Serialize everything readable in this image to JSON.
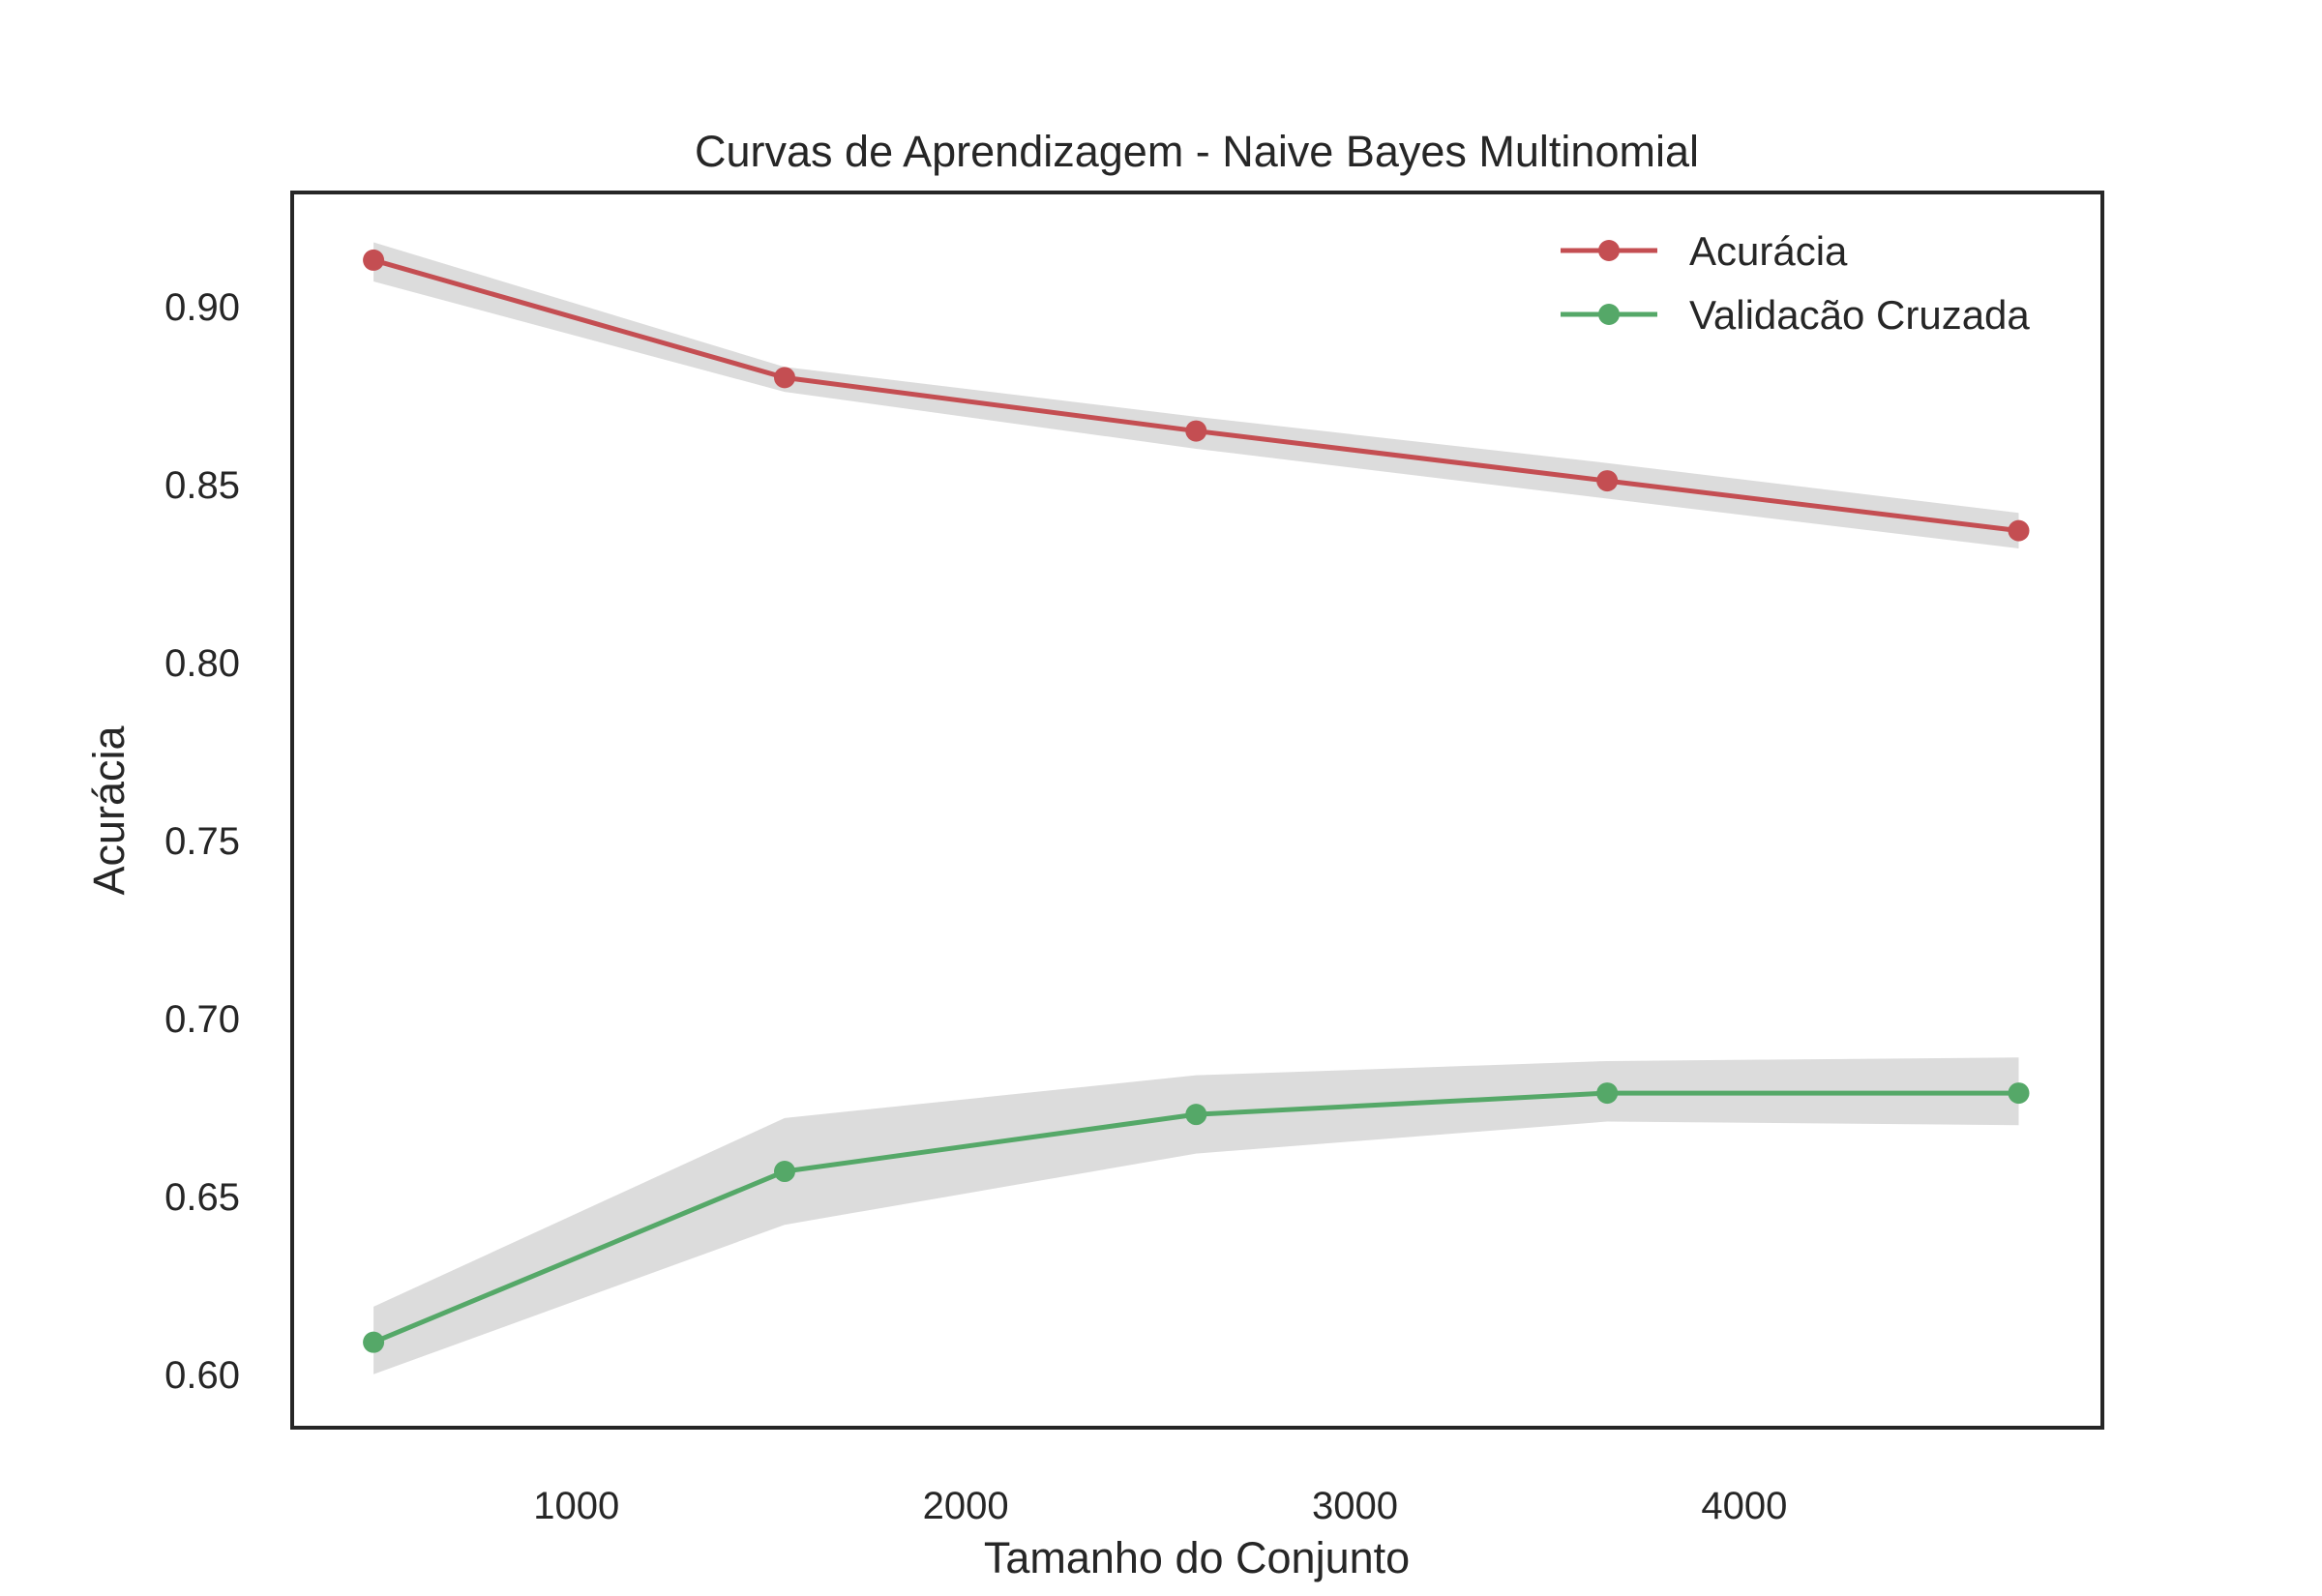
{
  "chart_data": {
    "type": "line",
    "title": "Curvas de Aprendizagem - Naive Bayes Multinomial",
    "xlabel": "Tamanho do Conjunto",
    "ylabel": "Acurácia",
    "x": [
      479,
      1535,
      2592,
      3648,
      4705
    ],
    "xlim": [
      270,
      4920
    ],
    "ylim": [
      0.585,
      0.932
    ],
    "xticks": [
      1000,
      2000,
      3000,
      4000
    ],
    "xtick_labels": [
      "1000",
      "2000",
      "3000",
      "4000"
    ],
    "yticks": [
      0.6,
      0.65,
      0.7,
      0.75,
      0.8,
      0.85,
      0.9
    ],
    "ytick_labels": [
      "0.60",
      "0.65",
      "0.70",
      "0.75",
      "0.80",
      "0.85",
      "0.90"
    ],
    "grid": false,
    "legend_position": "top-right",
    "band_color": "#dcdcdc",
    "series": [
      {
        "name": "Acurácia",
        "color": "#c44e52",
        "values": [
          0.913,
          0.88,
          0.865,
          0.851,
          0.837
        ],
        "band_upper": [
          0.918,
          0.883,
          0.869,
          0.856,
          0.842
        ],
        "band_lower": [
          0.907,
          0.876,
          0.86,
          0.846,
          0.832
        ]
      },
      {
        "name": "Validacão Cruzada",
        "color": "#55a868",
        "values": [
          0.609,
          0.657,
          0.673,
          0.679,
          0.679
        ],
        "band_upper": [
          0.619,
          0.672,
          0.684,
          0.688,
          0.689
        ],
        "band_lower": [
          0.6,
          0.642,
          0.662,
          0.671,
          0.67
        ]
      }
    ]
  }
}
